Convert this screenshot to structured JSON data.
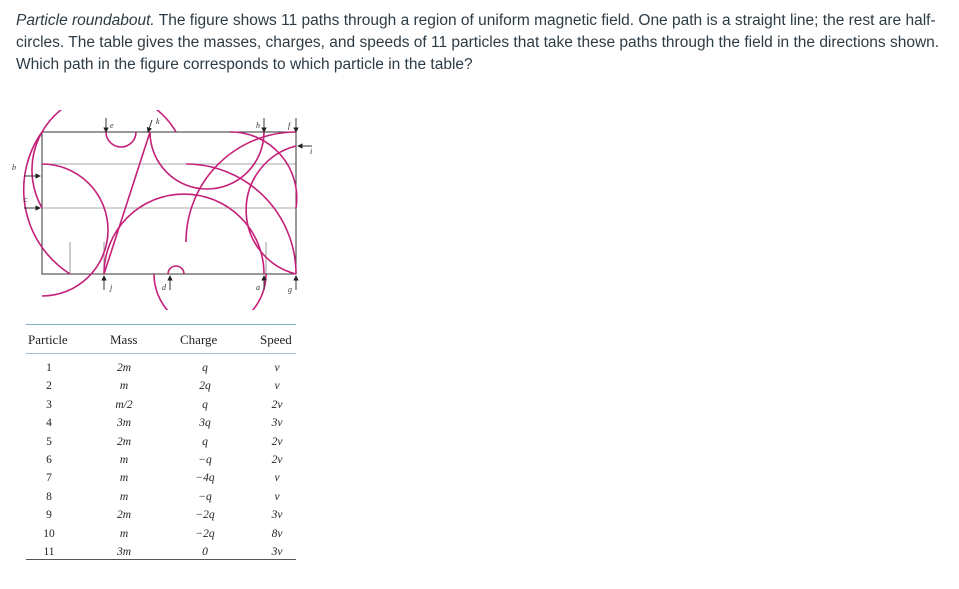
{
  "problem": {
    "title": "Particle roundabout.",
    "text": " The figure shows 11 paths through a region of uniform magnetic field. One path is a straight line; the rest are half-circles. The table gives the masses, charges, and speeds of 11 particles that take these paths through the field in the directions shown. Which path in the figure corresponds to which particle in the table?"
  },
  "figure": {
    "path_labels": [
      "a",
      "b",
      "c",
      "d",
      "e",
      "f",
      "g",
      "h",
      "i",
      "j",
      "k"
    ],
    "path_color": "#c41f78"
  },
  "table": {
    "headers": {
      "particle": "Particle",
      "mass": "Mass",
      "charge": "Charge",
      "speed": "Speed"
    },
    "rows": [
      {
        "particle": "1",
        "mass": "2m",
        "charge": "q",
        "speed": "v"
      },
      {
        "particle": "2",
        "mass": "m",
        "charge": "2q",
        "speed": "v"
      },
      {
        "particle": "3",
        "mass": "m/2",
        "charge": "q",
        "speed": "2v"
      },
      {
        "particle": "4",
        "mass": "3m",
        "charge": "3q",
        "speed": "3v"
      },
      {
        "particle": "5",
        "mass": "2m",
        "charge": "q",
        "speed": "2v"
      },
      {
        "particle": "6",
        "mass": "m",
        "charge": "−q",
        "speed": "2v"
      },
      {
        "particle": "7",
        "mass": "m",
        "charge": "−4q",
        "speed": "v"
      },
      {
        "particle": "8",
        "mass": "m",
        "charge": "−q",
        "speed": "v"
      },
      {
        "particle": "9",
        "mass": "2m",
        "charge": "−2q",
        "speed": "3v"
      },
      {
        "particle": "10",
        "mass": "m",
        "charge": "−2q",
        "speed": "8v"
      },
      {
        "particle": "11",
        "mass": "3m",
        "charge": "0",
        "speed": "3v"
      }
    ]
  }
}
